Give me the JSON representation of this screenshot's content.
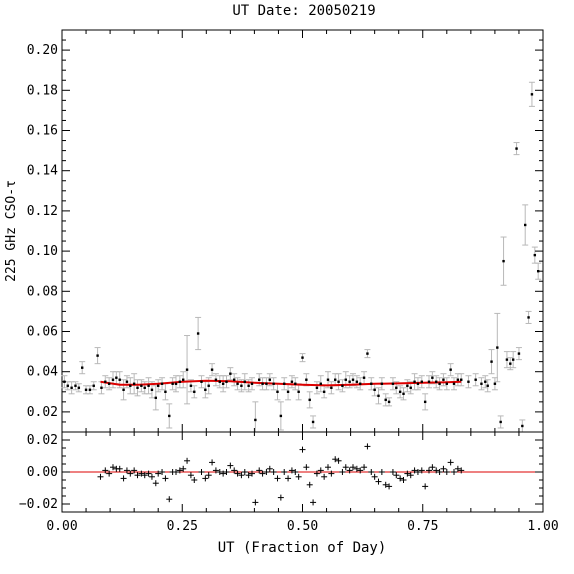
{
  "chart_data": {
    "type": "scatter",
    "title": "UT Date: 20050219",
    "xlabel": "UT (Fraction of Day)",
    "ylabel": "225 GHz CSO-τ",
    "xlim": [
      0,
      1
    ],
    "x_ticks": [
      "0.00",
      "0.25",
      "0.50",
      "0.75",
      "1.00"
    ],
    "x_tick_values": [
      0,
      0.25,
      0.5,
      0.75,
      1.0
    ],
    "colors": {
      "data": "#000000",
      "errorbar": "#b8b8b8",
      "fit": "#dd0000",
      "zero_line": "#dd0000"
    },
    "main_panel": {
      "ylim": [
        0.01,
        0.21
      ],
      "y_ticks": [
        "0.02",
        "0.04",
        "0.06",
        "0.08",
        "0.10",
        "0.12",
        "0.14",
        "0.16",
        "0.18",
        "0.20"
      ],
      "y_tick_values": [
        0.02,
        0.04,
        0.06,
        0.08,
        0.1,
        0.12,
        0.14,
        0.16,
        0.18,
        0.2
      ],
      "points": [
        [
          0.005,
          0.035,
          0.003
        ],
        [
          0.012,
          0.033,
          0.002
        ],
        [
          0.02,
          0.032,
          0.003
        ],
        [
          0.028,
          0.033,
          0.002
        ],
        [
          0.035,
          0.032,
          0.002
        ],
        [
          0.042,
          0.042,
          0.003
        ],
        [
          0.05,
          0.031,
          0.002
        ],
        [
          0.058,
          0.031,
          0.002
        ],
        [
          0.066,
          0.033,
          0.002
        ],
        [
          0.074,
          0.048,
          0.004
        ],
        [
          0.082,
          0.032,
          0.003
        ],
        [
          0.09,
          0.035,
          0.003
        ],
        [
          0.098,
          0.034,
          0.003
        ],
        [
          0.106,
          0.036,
          0.004
        ],
        [
          0.113,
          0.037,
          0.003
        ],
        [
          0.12,
          0.036,
          0.004
        ],
        [
          0.128,
          0.031,
          0.005
        ],
        [
          0.135,
          0.035,
          0.003
        ],
        [
          0.142,
          0.033,
          0.004
        ],
        [
          0.15,
          0.034,
          0.005
        ],
        [
          0.157,
          0.032,
          0.004
        ],
        [
          0.165,
          0.033,
          0.003
        ],
        [
          0.172,
          0.032,
          0.003
        ],
        [
          0.18,
          0.033,
          0.004
        ],
        [
          0.187,
          0.031,
          0.004
        ],
        [
          0.195,
          0.027,
          0.006
        ],
        [
          0.2,
          0.033,
          0.003
        ],
        [
          0.208,
          0.034,
          0.003
        ],
        [
          0.215,
          0.03,
          0.004
        ],
        [
          0.223,
          0.018,
          0.006
        ],
        [
          0.23,
          0.034,
          0.003
        ],
        [
          0.237,
          0.034,
          0.004
        ],
        [
          0.245,
          0.035,
          0.003
        ],
        [
          0.252,
          0.036,
          0.004
        ],
        [
          0.26,
          0.041,
          0.017
        ],
        [
          0.268,
          0.033,
          0.003
        ],
        [
          0.275,
          0.03,
          0.003
        ],
        [
          0.283,
          0.059,
          0.008
        ],
        [
          0.29,
          0.035,
          0.003
        ],
        [
          0.298,
          0.031,
          0.004
        ],
        [
          0.305,
          0.033,
          0.004
        ],
        [
          0.312,
          0.041,
          0.003
        ],
        [
          0.32,
          0.036,
          0.003
        ],
        [
          0.328,
          0.035,
          0.003
        ],
        [
          0.335,
          0.034,
          0.004
        ],
        [
          0.342,
          0.035,
          0.003
        ],
        [
          0.35,
          0.039,
          0.003
        ],
        [
          0.358,
          0.036,
          0.003
        ],
        [
          0.365,
          0.034,
          0.003
        ],
        [
          0.373,
          0.033,
          0.003
        ],
        [
          0.38,
          0.035,
          0.004
        ],
        [
          0.388,
          0.033,
          0.003
        ],
        [
          0.395,
          0.034,
          0.003
        ],
        [
          0.402,
          0.016,
          0.009
        ],
        [
          0.41,
          0.036,
          0.003
        ],
        [
          0.417,
          0.034,
          0.003
        ],
        [
          0.425,
          0.034,
          0.003
        ],
        [
          0.432,
          0.036,
          0.003
        ],
        [
          0.44,
          0.034,
          0.003
        ],
        [
          0.448,
          0.03,
          0.004
        ],
        [
          0.455,
          0.018,
          0.007
        ],
        [
          0.462,
          0.034,
          0.003
        ],
        [
          0.47,
          0.03,
          0.004
        ],
        [
          0.478,
          0.035,
          0.003
        ],
        [
          0.485,
          0.034,
          0.003
        ],
        [
          0.492,
          0.03,
          0.004
        ],
        [
          0.5,
          0.047,
          0.002
        ],
        [
          0.508,
          0.036,
          0.003
        ],
        [
          0.515,
          0.026,
          0.004
        ],
        [
          0.522,
          0.015,
          0.003
        ],
        [
          0.53,
          0.032,
          0.003
        ],
        [
          0.538,
          0.034,
          0.004
        ],
        [
          0.545,
          0.03,
          0.003
        ],
        [
          0.553,
          0.036,
          0.004
        ],
        [
          0.56,
          0.032,
          0.003
        ],
        [
          0.568,
          0.036,
          0.003
        ],
        [
          0.575,
          0.035,
          0.004
        ],
        [
          0.583,
          0.033,
          0.003
        ],
        [
          0.59,
          0.036,
          0.004
        ],
        [
          0.598,
          0.035,
          0.003
        ],
        [
          0.605,
          0.036,
          0.003
        ],
        [
          0.613,
          0.035,
          0.003
        ],
        [
          0.62,
          0.034,
          0.003
        ],
        [
          0.628,
          0.037,
          0.003
        ],
        [
          0.635,
          0.049,
          0.002
        ],
        [
          0.643,
          0.034,
          0.003
        ],
        [
          0.65,
          0.031,
          0.003
        ],
        [
          0.658,
          0.028,
          0.004
        ],
        [
          0.665,
          0.034,
          0.003
        ],
        [
          0.673,
          0.026,
          0.003
        ],
        [
          0.68,
          0.025,
          0.002
        ],
        [
          0.688,
          0.034,
          0.003
        ],
        [
          0.695,
          0.032,
          0.003
        ],
        [
          0.703,
          0.03,
          0.003
        ],
        [
          0.71,
          0.029,
          0.003
        ],
        [
          0.718,
          0.033,
          0.003
        ],
        [
          0.725,
          0.032,
          0.003
        ],
        [
          0.733,
          0.035,
          0.004
        ],
        [
          0.74,
          0.034,
          0.003
        ],
        [
          0.748,
          0.035,
          0.003
        ],
        [
          0.755,
          0.025,
          0.004
        ],
        [
          0.763,
          0.035,
          0.003
        ],
        [
          0.77,
          0.037,
          0.003
        ],
        [
          0.778,
          0.035,
          0.003
        ],
        [
          0.785,
          0.034,
          0.003
        ],
        [
          0.793,
          0.036,
          0.003
        ],
        [
          0.8,
          0.034,
          0.003
        ],
        [
          0.808,
          0.041,
          0.003
        ],
        [
          0.815,
          0.034,
          0.003
        ],
        [
          0.823,
          0.036,
          0.003
        ],
        [
          0.83,
          0.036,
          0.003
        ],
        [
          0.845,
          0.035,
          0.003
        ],
        [
          0.86,
          0.036,
          0.003
        ],
        [
          0.872,
          0.034,
          0.003
        ],
        [
          0.88,
          0.035,
          0.003
        ],
        [
          0.885,
          0.033,
          0.003
        ],
        [
          0.893,
          0.045,
          0.006
        ],
        [
          0.9,
          0.034,
          0.003
        ],
        [
          0.905,
          0.052,
          0.017
        ],
        [
          0.912,
          0.015,
          0.003
        ],
        [
          0.918,
          0.095,
          0.012
        ],
        [
          0.925,
          0.046,
          0.004
        ],
        [
          0.932,
          0.044,
          0.003
        ],
        [
          0.938,
          0.046,
          0.004
        ],
        [
          0.945,
          0.151,
          0.003
        ],
        [
          0.95,
          0.049,
          0.003
        ],
        [
          0.957,
          0.013,
          0.003
        ],
        [
          0.963,
          0.113,
          0.01
        ],
        [
          0.97,
          0.067,
          0.003
        ],
        [
          0.977,
          0.178,
          0.006
        ],
        [
          0.983,
          0.098,
          0.004
        ],
        [
          0.99,
          0.09,
          0.004
        ]
      ],
      "fit_curve": [
        [
          0.08,
          0.035
        ],
        [
          0.12,
          0.0335
        ],
        [
          0.16,
          0.0335
        ],
        [
          0.2,
          0.034
        ],
        [
          0.25,
          0.035
        ],
        [
          0.3,
          0.0355
        ],
        [
          0.35,
          0.0352
        ],
        [
          0.4,
          0.0345
        ],
        [
          0.45,
          0.034
        ],
        [
          0.5,
          0.0335
        ],
        [
          0.55,
          0.0332
        ],
        [
          0.6,
          0.0335
        ],
        [
          0.65,
          0.034
        ],
        [
          0.7,
          0.0342
        ],
        [
          0.75,
          0.0345
        ],
        [
          0.8,
          0.0348
        ],
        [
          0.83,
          0.035
        ]
      ]
    },
    "residual_panel": {
      "ylim": [
        -0.025,
        0.025
      ],
      "y_ticks": [
        "−0.02",
        "0.00",
        "0.02"
      ],
      "y_tick_values": [
        -0.02,
        0.0,
        0.02
      ],
      "points": [
        [
          0.08,
          -0.003
        ],
        [
          0.09,
          0.001
        ],
        [
          0.098,
          -0.001
        ],
        [
          0.106,
          0.003
        ],
        [
          0.113,
          0.002
        ],
        [
          0.12,
          0.002
        ],
        [
          0.128,
          -0.004
        ],
        [
          0.135,
          0.001
        ],
        [
          0.142,
          -0.001
        ],
        [
          0.15,
          0.001
        ],
        [
          0.157,
          -0.002
        ],
        [
          0.165,
          -0.001
        ],
        [
          0.172,
          -0.002
        ],
        [
          0.18,
          -0.001
        ],
        [
          0.187,
          -0.003
        ],
        [
          0.195,
          -0.007
        ],
        [
          0.2,
          -0.001
        ],
        [
          0.208,
          0.0
        ],
        [
          0.215,
          -0.004
        ],
        [
          0.223,
          -0.017
        ],
        [
          0.23,
          0.0
        ],
        [
          0.237,
          0.0
        ],
        [
          0.245,
          0.001
        ],
        [
          0.252,
          0.002
        ],
        [
          0.26,
          0.007
        ],
        [
          0.268,
          -0.002
        ],
        [
          0.275,
          -0.005
        ],
        [
          0.29,
          0.0
        ],
        [
          0.298,
          -0.004
        ],
        [
          0.305,
          -0.002
        ],
        [
          0.312,
          0.006
        ],
        [
          0.32,
          0.001
        ],
        [
          0.328,
          0.0
        ],
        [
          0.335,
          -0.001
        ],
        [
          0.342,
          0.0
        ],
        [
          0.35,
          0.004
        ],
        [
          0.358,
          0.001
        ],
        [
          0.365,
          -0.001
        ],
        [
          0.373,
          -0.002
        ],
        [
          0.38,
          0.0
        ],
        [
          0.388,
          -0.002
        ],
        [
          0.395,
          -0.001
        ],
        [
          0.402,
          -0.019
        ],
        [
          0.41,
          0.001
        ],
        [
          0.417,
          -0.001
        ],
        [
          0.425,
          0.0
        ],
        [
          0.432,
          0.002
        ],
        [
          0.44,
          0.0
        ],
        [
          0.448,
          -0.004
        ],
        [
          0.455,
          -0.016
        ],
        [
          0.462,
          0.0
        ],
        [
          0.47,
          -0.004
        ],
        [
          0.478,
          0.001
        ],
        [
          0.485,
          0.0
        ],
        [
          0.492,
          -0.003
        ],
        [
          0.5,
          0.014
        ],
        [
          0.508,
          0.003
        ],
        [
          0.515,
          -0.008
        ],
        [
          0.522,
          -0.019
        ],
        [
          0.53,
          -0.001
        ],
        [
          0.538,
          0.001
        ],
        [
          0.545,
          -0.003
        ],
        [
          0.553,
          0.003
        ],
        [
          0.56,
          -0.001
        ],
        [
          0.568,
          0.008
        ],
        [
          0.575,
          0.007
        ],
        [
          0.583,
          0.0
        ],
        [
          0.59,
          0.003
        ],
        [
          0.598,
          0.001
        ],
        [
          0.605,
          0.003
        ],
        [
          0.613,
          0.002
        ],
        [
          0.62,
          0.001
        ],
        [
          0.628,
          0.003
        ],
        [
          0.635,
          0.016
        ],
        [
          0.643,
          0.0
        ],
        [
          0.65,
          -0.003
        ],
        [
          0.658,
          -0.006
        ],
        [
          0.665,
          0.0
        ],
        [
          0.673,
          -0.008
        ],
        [
          0.68,
          -0.009
        ],
        [
          0.688,
          0.0
        ],
        [
          0.695,
          -0.002
        ],
        [
          0.703,
          -0.004
        ],
        [
          0.71,
          -0.005
        ],
        [
          0.718,
          -0.001
        ],
        [
          0.725,
          -0.002
        ],
        [
          0.733,
          0.001
        ],
        [
          0.74,
          0.0
        ],
        [
          0.748,
          0.001
        ],
        [
          0.755,
          -0.009
        ],
        [
          0.763,
          0.001
        ],
        [
          0.77,
          0.003
        ],
        [
          0.778,
          0.001
        ],
        [
          0.785,
          0.0
        ],
        [
          0.793,
          0.002
        ],
        [
          0.8,
          0.0
        ],
        [
          0.808,
          0.006
        ],
        [
          0.815,
          0.0
        ],
        [
          0.823,
          0.002
        ],
        [
          0.83,
          0.001
        ]
      ]
    }
  }
}
